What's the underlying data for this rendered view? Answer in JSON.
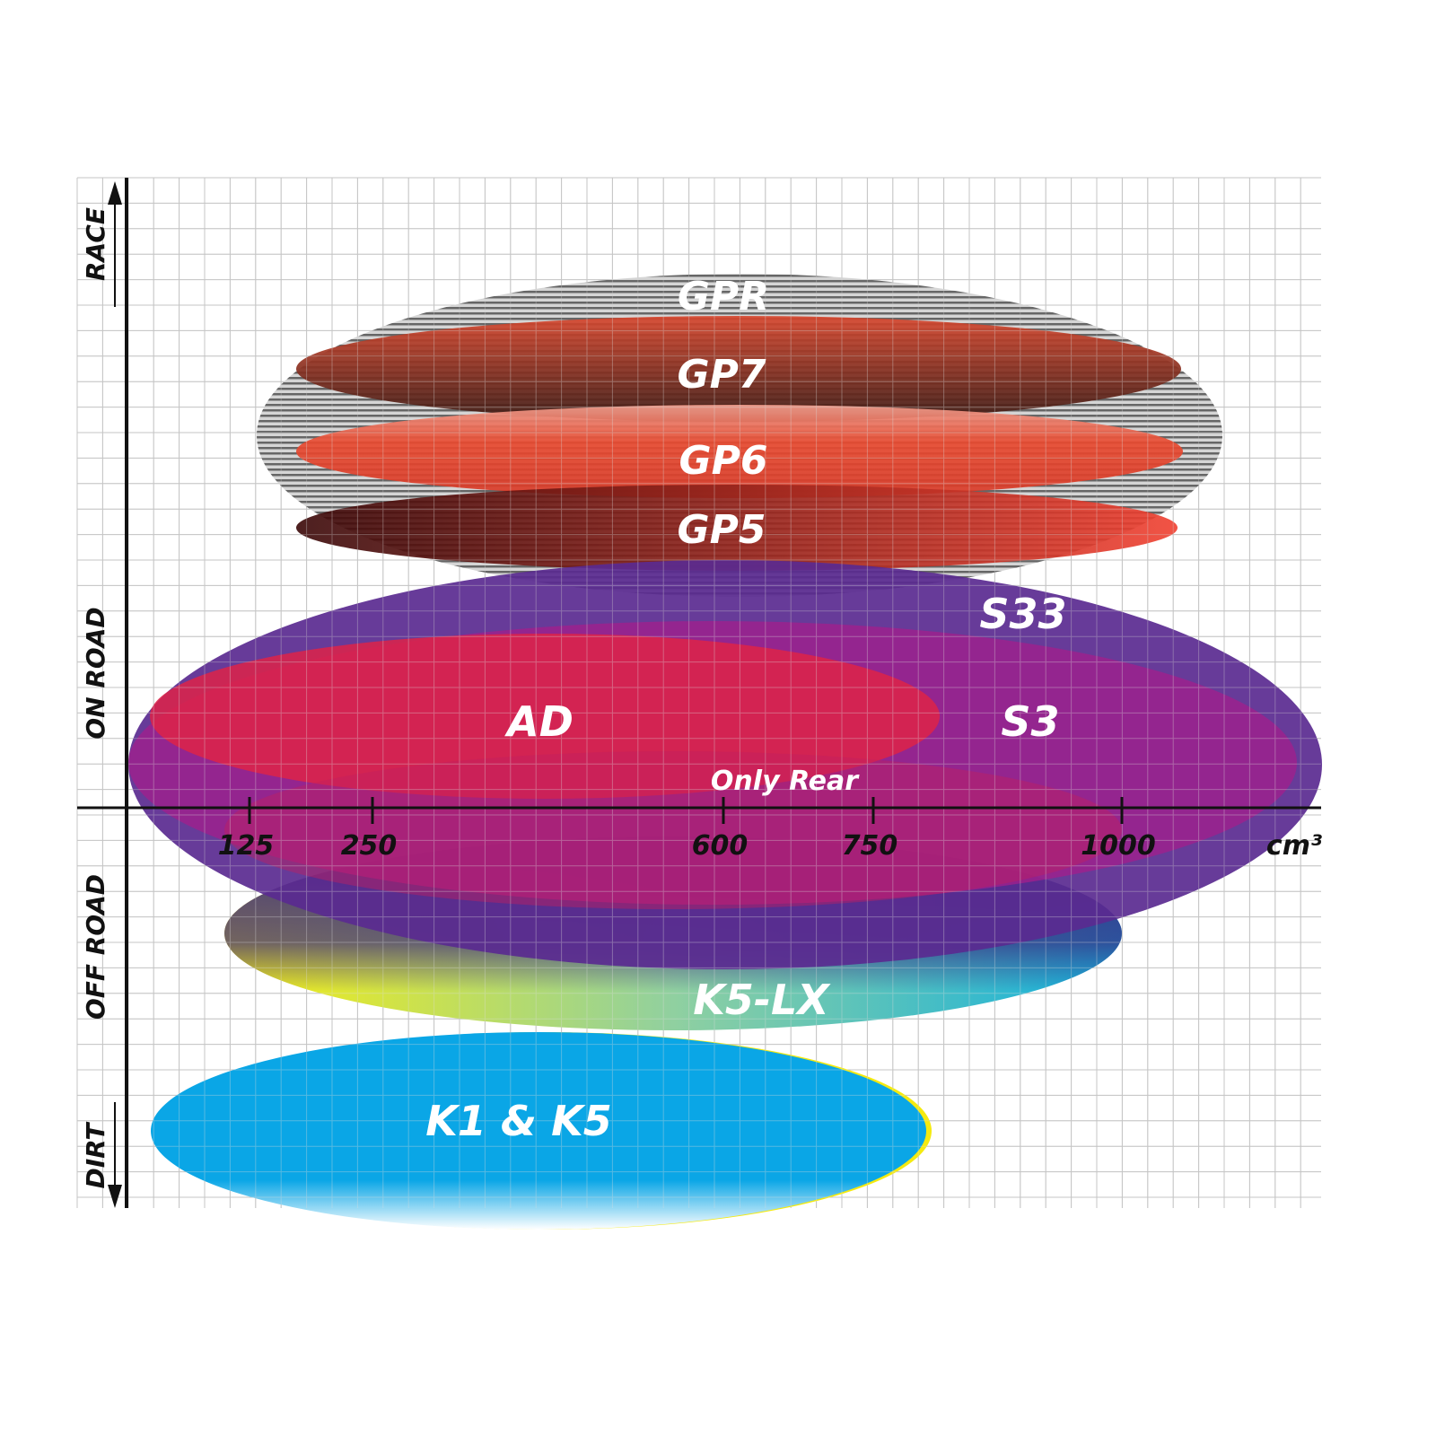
{
  "chart_data": {
    "type": "diagram",
    "title": "",
    "xlabel": "cm³",
    "x_ticks": [
      "125",
      "250",
      "600",
      "750",
      "1000"
    ],
    "y_labels": [
      "RACE",
      "ON ROAD",
      "OFF ROAD",
      "DIRT"
    ],
    "grid": true,
    "series": [
      {
        "name": "GPR",
        "color": "#9a9a9a"
      },
      {
        "name": "GP7",
        "color": "#b8402c"
      },
      {
        "name": "GP6",
        "color": "#e2452f"
      },
      {
        "name": "GP5",
        "color": "#8a1a14"
      },
      {
        "name": "S33",
        "color": "#5a2a90"
      },
      {
        "name": "S3",
        "color": "#9a1f8a"
      },
      {
        "name": "AD",
        "color": "#d9234a"
      },
      {
        "name": "Only Rear",
        "color": "#b02060"
      },
      {
        "name": "K5-LX",
        "color": "#2ab4d8"
      },
      {
        "name": "K1 & K5",
        "color": "#0aa6e6"
      }
    ]
  }
}
